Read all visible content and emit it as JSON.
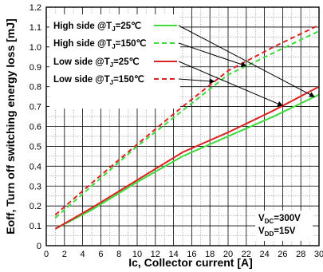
{
  "chart_data": {
    "type": "line",
    "xlabel": "Ic, Collector current [A]",
    "ylabel": "Eoff, Turn off switching energy loss [mJ]",
    "xlim": [
      0,
      30
    ],
    "ylim": [
      0,
      1.2
    ],
    "xticks": [
      0,
      2,
      4,
      6,
      8,
      10,
      12,
      14,
      16,
      18,
      20,
      22,
      24,
      26,
      28,
      30
    ],
    "yticks": [
      0,
      0.1,
      0.2,
      0.3,
      0.4,
      0.5,
      0.6,
      0.7,
      0.8,
      0.9,
      1.0,
      1.1,
      1.2
    ],
    "ytick_labels": [
      "0",
      "0.1",
      "0.2",
      "0.3",
      "0.4",
      "0.5",
      "0.6",
      "0.7",
      "0.8",
      "0.9",
      "1.0",
      "1.1",
      "1.2"
    ],
    "grid": true,
    "legend_position": "top-left",
    "series": [
      {
        "name": "High side @TJ=25℃",
        "legend_label": {
          "pre": "High side @T",
          "sub": "J",
          "post": "=25℃"
        },
        "color": "#3ddc3d",
        "dash": "solid",
        "x": [
          1,
          5,
          10,
          15,
          20,
          25,
          30
        ],
        "y": [
          0.085,
          0.18,
          0.32,
          0.45,
          0.55,
          0.65,
          0.76
        ]
      },
      {
        "name": "High side @TJ=150℃",
        "legend_label": {
          "pre": "High side @T",
          "sub": "J",
          "post": "=150℃"
        },
        "color": "#3ddc3d",
        "dash": "dashed",
        "x": [
          1,
          5,
          10,
          15,
          20,
          25,
          30
        ],
        "y": [
          0.14,
          0.3,
          0.5,
          0.68,
          0.86,
          0.97,
          1.08
        ]
      },
      {
        "name": "Low side @TJ=25℃",
        "legend_label": {
          "pre": "Low side @T",
          "sub": "J",
          "post": "=25℃"
        },
        "color": "#dd2222",
        "dash": "solid",
        "x": [
          1,
          5,
          10,
          15,
          20,
          25,
          30
        ],
        "y": [
          0.085,
          0.19,
          0.33,
          0.47,
          0.57,
          0.68,
          0.8
        ]
      },
      {
        "name": "Low side @TJ=150℃",
        "legend_label": {
          "pre": "Low side @T",
          "sub": "J",
          "post": "=150℃"
        },
        "color": "#dd2222",
        "dash": "dashed",
        "x": [
          1,
          5,
          10,
          15,
          20,
          25,
          30
        ],
        "y": [
          0.155,
          0.315,
          0.51,
          0.7,
          0.88,
          1.0,
          1.11
        ]
      }
    ],
    "annotation": {
      "lines": [
        {
          "pre": "V",
          "sub": "DC",
          "post": "=300V"
        },
        {
          "pre": "V",
          "sub": "DD",
          "post": "=15V"
        }
      ]
    }
  }
}
